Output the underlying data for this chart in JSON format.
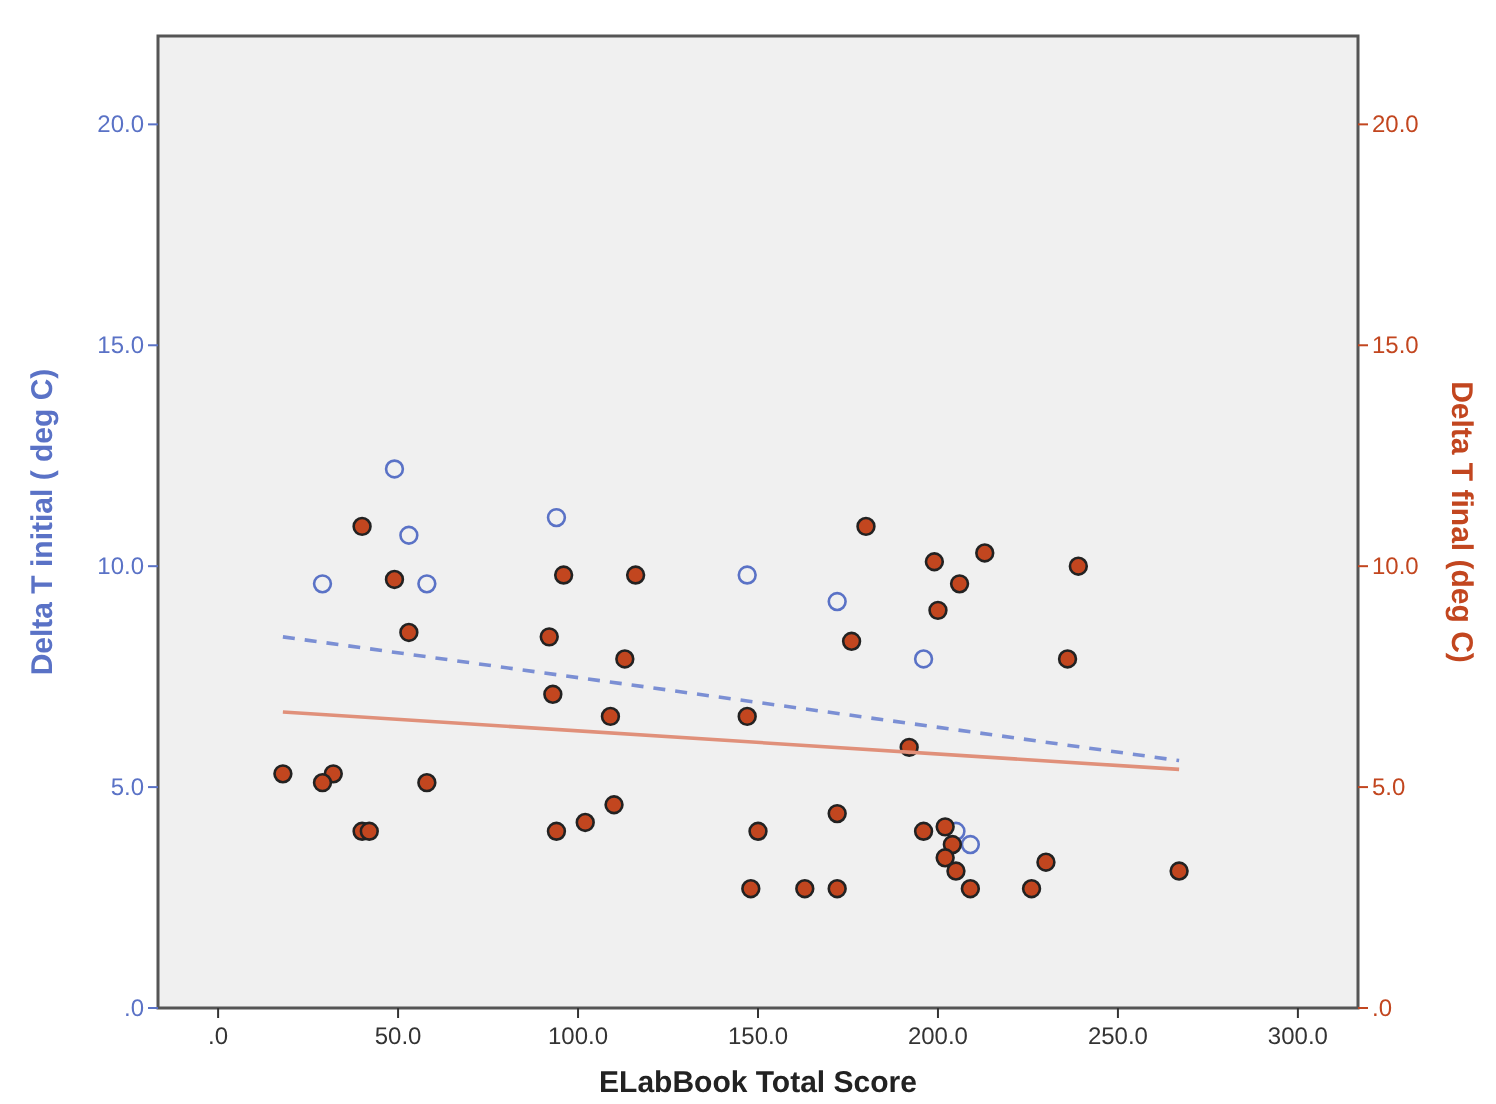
{
  "chart_data": {
    "type": "scatter",
    "xlabel": "ELabBook Total Score",
    "ylabel": "Delta T initial ( deg C)",
    "y2label": "Delta T final (deg C)",
    "xlim": [
      -16.7,
      316.7
    ],
    "ylim": [
      0,
      22
    ],
    "y2lim": [
      0,
      22
    ],
    "xticks": [
      {
        "value": 0,
        "label": ".0"
      },
      {
        "value": 50,
        "label": "50.0"
      },
      {
        "value": 100,
        "label": "100.0"
      },
      {
        "value": 150,
        "label": "150.0"
      },
      {
        "value": 200,
        "label": "200.0"
      },
      {
        "value": 250,
        "label": "250.0"
      },
      {
        "value": 300,
        "label": "300.0"
      }
    ],
    "yticks": [
      {
        "value": 0,
        "label": ".0"
      },
      {
        "value": 5,
        "label": "5.0"
      },
      {
        "value": 10,
        "label": "10.0"
      },
      {
        "value": 15,
        "label": "15.0"
      },
      {
        "value": 20,
        "label": "20.0"
      }
    ],
    "y2ticks": [
      {
        "value": 0,
        "label": ".0"
      },
      {
        "value": 5,
        "label": "5.0"
      },
      {
        "value": 10,
        "label": "10.0"
      },
      {
        "value": 15,
        "label": "15.0"
      },
      {
        "value": 20,
        "label": "20.0"
      }
    ],
    "grid": false,
    "series": [
      {
        "axis": "y",
        "marker": "circle",
        "color": "#5a72c6",
        "x": [
          49,
          94,
          53,
          29,
          58,
          147,
          172,
          196,
          205,
          209
        ],
        "values": [
          12.2,
          11.1,
          10.7,
          9.6,
          9.6,
          9.8,
          9.2,
          7.9,
          4.0,
          3.7
        ]
      },
      {
        "axis": "y2",
        "marker": "circle",
        "color": "#c2461f",
        "x": [
          40,
          49,
          96,
          116,
          180,
          199,
          213,
          239,
          206,
          200,
          53,
          92,
          176,
          113,
          236,
          93,
          109,
          147,
          192,
          18,
          32,
          29,
          58,
          110,
          172,
          102,
          40,
          42,
          94,
          150,
          196,
          202,
          204,
          202,
          205,
          230,
          267,
          148,
          163,
          172,
          209,
          226
        ],
        "values": [
          10.9,
          9.7,
          9.8,
          9.8,
          10.9,
          10.1,
          10.3,
          10.0,
          9.6,
          9.0,
          8.5,
          8.4,
          8.3,
          7.9,
          7.9,
          7.1,
          6.6,
          6.6,
          5.9,
          5.3,
          5.3,
          5.1,
          5.1,
          4.6,
          4.4,
          4.2,
          4.0,
          4.0,
          4.0,
          4.0,
          4.0,
          4.1,
          3.7,
          3.4,
          3.1,
          3.3,
          3.1,
          2.7,
          2.7,
          2.7,
          2.7,
          2.7
        ]
      },
      {
        "type": "line",
        "axis": "y",
        "color": "#7b8fd4",
        "line_style": "dashed",
        "x": [
          18,
          267
        ],
        "values": [
          8.4,
          5.6
        ]
      },
      {
        "type": "line",
        "axis": "y2",
        "color": "#e0907a",
        "line_style": "solid",
        "x": [
          18,
          267
        ],
        "values": [
          6.7,
          5.4
        ]
      }
    ]
  }
}
